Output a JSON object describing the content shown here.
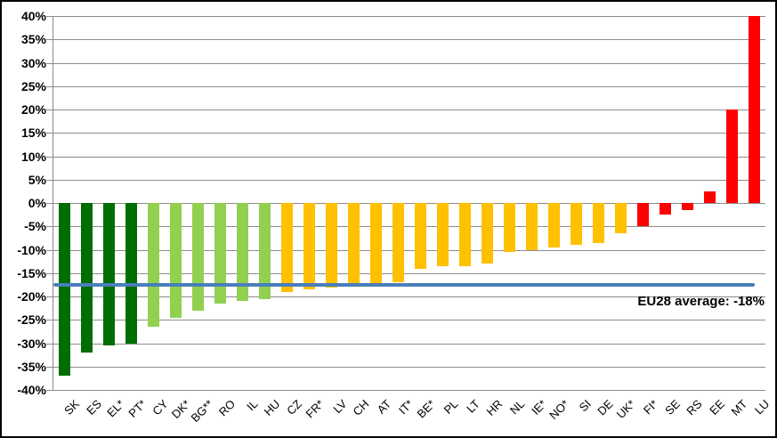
{
  "chart_data": {
    "type": "bar",
    "title": "",
    "xlabel": "",
    "ylabel": "",
    "categories": [
      "SK",
      "ES",
      "EL*",
      "PT*",
      "CY",
      "DK*",
      "BG**",
      "RO",
      "IL",
      "HU",
      "CZ",
      "FR*",
      "LV",
      "CH",
      "AT",
      "IT*",
      "BE*",
      "PL",
      "LT",
      "HR",
      "NL",
      "IE*",
      "NO*",
      "SI",
      "DE",
      "UK*",
      "FI*",
      "SE",
      "RS",
      "EE",
      "MT",
      "LU"
    ],
    "values": [
      -37,
      -32,
      -30.5,
      -30,
      -26.5,
      -24.5,
      -23,
      -21.5,
      -21,
      -20.5,
      -19,
      -18.5,
      -18,
      -17.5,
      -17.5,
      -17,
      -14,
      -13.5,
      -13.5,
      -13,
      -10.5,
      -10,
      -9.5,
      -9,
      -8.5,
      -6.5,
      -5,
      -2.5,
      -1.5,
      2.5,
      20,
      40
    ],
    "ylim": [
      -40,
      40
    ],
    "ytick_step": 5,
    "ytick_labels": [
      "40%",
      "35%",
      "30%",
      "25%",
      "20%",
      "15%",
      "10%",
      "5%",
      "0%",
      "-5%",
      "-10%",
      "-15%",
      "-20%",
      "-25%",
      "-30%",
      "-35%",
      "-40%"
    ],
    "grid": true,
    "legend": "none",
    "color_groups": [
      {
        "name": "dark-green",
        "color": "#006e00",
        "members": [
          "SK",
          "ES",
          "EL*",
          "PT*"
        ]
      },
      {
        "name": "light-green",
        "color": "#92d050",
        "members": [
          "CY",
          "DK*",
          "BG**",
          "RO",
          "IL",
          "HU"
        ]
      },
      {
        "name": "orange",
        "color": "#ffc000",
        "members": [
          "CZ",
          "FR*",
          "LV",
          "CH",
          "AT",
          "IT*",
          "BE*",
          "PL",
          "LT",
          "HR",
          "NL",
          "IE*",
          "NO*",
          "SI",
          "DE",
          "UK*"
        ]
      },
      {
        "name": "red",
        "color": "#ff0000",
        "members": [
          "FI*",
          "SE",
          "RS",
          "EE",
          "MT",
          "LU"
        ]
      }
    ],
    "reference_line": {
      "value": -17.5,
      "label": "EU28 average: -18%",
      "color": "#4a7ebb"
    },
    "gridline_color": "#8c8c8c"
  }
}
